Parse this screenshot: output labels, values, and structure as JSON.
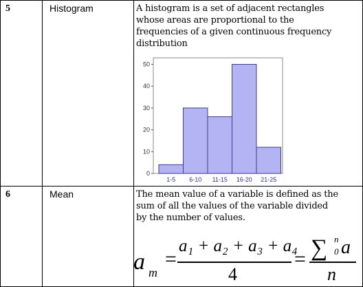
{
  "rows": [
    {
      "number": "5",
      "term": "Histogram",
      "description": [
        "A histogram is a set of adjacent rectangles",
        "whose areas are proportional to the",
        "frequencies of a given continuous frequency",
        "distribution"
      ]
    },
    {
      "number": "6",
      "term": "Mean",
      "description": [
        "The mean value of a variable is defined as the",
        "sum of all the values of the variable divided",
        "by the number of values."
      ]
    }
  ],
  "chart_data": {
    "type": "bar",
    "categories": [
      "1-5",
      "6-10",
      "11-15",
      "16-20",
      "21-25"
    ],
    "values": [
      4,
      30,
      26,
      50,
      12
    ],
    "title": "",
    "xlabel": "",
    "ylabel": "",
    "ylim": [
      0,
      53
    ],
    "yticks": [
      0,
      10,
      20,
      30,
      40,
      50
    ],
    "colors": {
      "bar_fill": "#b4b4f5",
      "bar_stroke": "#3c3c8c",
      "tick_label": "#333399"
    }
  },
  "formula": {
    "lhs": "a",
    "lhs_sub": "m",
    "equals": "=",
    "numerator": "a₁ + a₂ + a₃ + a₄",
    "denominator": "4",
    "equals2": "=",
    "sum_symbol": "∑",
    "sum_upper": "n",
    "sum_lower": "0",
    "sum_var": "a",
    "denominator2": "n"
  }
}
